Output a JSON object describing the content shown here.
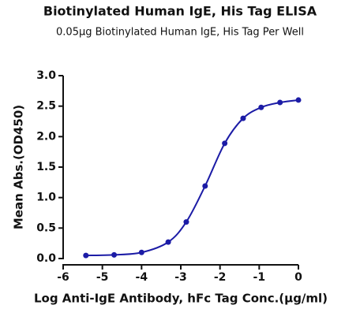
{
  "chart_data": {
    "type": "scatter",
    "title": "Biotinylated Human IgE, His Tag ELISA",
    "subtitle": "0.05μg Biotinylated Human IgE, His Tag Per Well",
    "x_label": "Log Anti-IgE Antibody, hFc Tag Conc.(μg/ml)",
    "y_label": "Mean Abs.(OD450)",
    "x": [
      -5.42,
      -4.7,
      -4.0,
      -3.32,
      -2.86,
      -2.38,
      -1.88,
      -1.41,
      -0.95,
      -0.47,
      0
    ],
    "series": [
      {
        "color": "#1c1ca6",
        "values": [
          0.05,
          0.06,
          0.1,
          0.27,
          0.6,
          1.19,
          1.89,
          2.3,
          2.48,
          2.56,
          2.6
        ]
      }
    ],
    "xlim": [
      -6,
      0
    ],
    "xticks": [
      -6,
      -5,
      -4,
      -3,
      -2,
      -1,
      0
    ],
    "ylim": [
      0,
      3
    ],
    "yticks": [
      {
        "value": 0,
        "label": "0.0"
      },
      {
        "value": 0.5,
        "label": "0.5"
      },
      {
        "value": 1,
        "label": "1.0"
      },
      {
        "value": 1.5,
        "label": "1.5"
      },
      {
        "value": 2,
        "label": "2.0"
      },
      {
        "value": 2.5,
        "label": "2.5"
      },
      {
        "value": 3,
        "label": "3.0"
      }
    ]
  }
}
